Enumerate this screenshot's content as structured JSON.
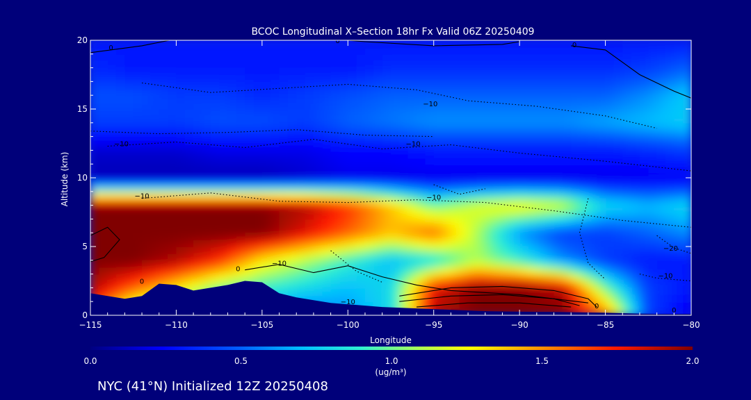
{
  "chart_data": {
    "type": "heatmap",
    "title": "BCOC Longitudinal X–Section 18hr  Fx Valid 06Z 20250409",
    "xlabel": "Longitude",
    "ylabel": "Altitude (km)",
    "xlim": [
      -115,
      -80
    ],
    "ylim": [
      0,
      20
    ],
    "x_ticks": [
      -115,
      -110,
      -105,
      -100,
      -95,
      -90,
      -85,
      -80
    ],
    "x_tick_labels": [
      "−115",
      "−110",
      "−105",
      "−100",
      "−95",
      "−90",
      "−85",
      "−80"
    ],
    "y_ticks": [
      0,
      5,
      10,
      15,
      20
    ],
    "y_tick_labels": [
      "0",
      "5",
      "10",
      "15",
      "20"
    ],
    "colorbar": {
      "min": 0.0,
      "max": 2.0,
      "ticks": [
        0.0,
        0.5,
        1.0,
        1.5,
        2.0
      ],
      "tick_labels": [
        "0.0",
        "0.5",
        "1.0",
        "1.5",
        "2.0"
      ],
      "label_main": "1.0",
      "units": "(ug/m³)"
    },
    "grid": {
      "x": [
        -115,
        -112.5,
        -110,
        -107.5,
        -105,
        -102.5,
        -100,
        -97.5,
        -95,
        -92.5,
        -90,
        -87.5,
        -85,
        -82.5,
        -80
      ],
      "y": [
        0,
        2,
        4,
        6,
        8,
        10,
        12,
        14,
        16,
        18,
        20
      ],
      "z": [
        [
          1.6,
          0.9,
          0.8,
          0.7,
          0.6,
          0.5,
          0.6,
          0.8,
          1.9,
          2.0,
          2.0,
          2.0,
          1.6,
          0.4,
          0.2
        ],
        [
          1.9,
          1.6,
          1.3,
          1.0,
          0.9,
          0.8,
          0.7,
          0.8,
          1.8,
          2.0,
          2.0,
          1.9,
          1.0,
          0.4,
          0.3
        ],
        [
          2.0,
          2.0,
          1.9,
          1.7,
          1.3,
          1.1,
          0.9,
          0.7,
          0.8,
          1.1,
          0.9,
          0.6,
          0.4,
          0.3,
          0.3
        ],
        [
          2.0,
          2.0,
          2.0,
          2.0,
          2.0,
          1.8,
          1.6,
          1.4,
          1.6,
          1.1,
          0.6,
          0.4,
          0.4,
          0.5,
          0.6
        ],
        [
          2.0,
          2.0,
          2.0,
          2.0,
          2.0,
          1.9,
          1.7,
          1.4,
          1.0,
          1.2,
          1.3,
          1.2,
          0.8,
          0.7,
          0.8
        ],
        [
          0.1,
          0.1,
          0.1,
          0.1,
          0.1,
          0.15,
          0.2,
          0.2,
          0.2,
          0.2,
          0.2,
          0.2,
          0.2,
          0.2,
          0.2
        ],
        [
          0.15,
          0.15,
          0.15,
          0.2,
          0.2,
          0.2,
          0.25,
          0.25,
          0.3,
          0.3,
          0.3,
          0.3,
          0.3,
          0.35,
          0.4
        ],
        [
          0.4,
          0.4,
          0.4,
          0.45,
          0.45,
          0.4,
          0.5,
          0.55,
          0.6,
          0.6,
          0.6,
          0.6,
          0.65,
          0.7,
          0.75
        ],
        [
          0.45,
          0.45,
          0.4,
          0.4,
          0.35,
          0.4,
          0.45,
          0.5,
          0.5,
          0.5,
          0.5,
          0.5,
          0.5,
          0.6,
          0.75
        ],
        [
          0.35,
          0.3,
          0.3,
          0.3,
          0.3,
          0.3,
          0.3,
          0.35,
          0.35,
          0.35,
          0.35,
          0.35,
          0.35,
          0.4,
          0.5
        ],
        [
          0.3,
          0.3,
          0.3,
          0.3,
          0.3,
          0.3,
          0.3,
          0.3,
          0.3,
          0.3,
          0.3,
          0.3,
          0.3,
          0.3,
          0.3
        ]
      ]
    },
    "terrain": {
      "x": [
        -115,
        -114,
        -113,
        -112,
        -111,
        -110,
        -109,
        -108,
        -107,
        -106,
        -105,
        -104,
        -103,
        -102,
        -101,
        -100,
        -99,
        -98,
        -97,
        -96,
        -95,
        -94,
        -93,
        -92,
        -91,
        -90,
        -89,
        -88,
        -87,
        -86,
        -85,
        -84,
        -83,
        -82,
        -81,
        -80
      ],
      "y": [
        1.6,
        1.4,
        1.2,
        1.4,
        2.3,
        2.2,
        1.8,
        2.0,
        2.2,
        2.5,
        2.4,
        1.6,
        1.3,
        1.1,
        0.9,
        0.8,
        0.7,
        0.6,
        0.55,
        0.5,
        0.45,
        0.4,
        0.35,
        0.3,
        0.28,
        0.26,
        0.25,
        0.24,
        0.22,
        0.2,
        0.18,
        0.15,
        0.12,
        0.1,
        0.1,
        0.1
      ]
    },
    "contour_labels": [
      {
        "text": "0",
        "x": -113.8,
        "y": 19.3
      },
      {
        "text": "0",
        "x": -100.6,
        "y": 19.8
      },
      {
        "text": "0",
        "x": -86.8,
        "y": 19.5
      },
      {
        "text": "−10",
        "x": -95.2,
        "y": 15.2
      },
      {
        "text": "−10",
        "x": -113.2,
        "y": 12.3
      },
      {
        "text": "−10",
        "x": -96.2,
        "y": 12.3
      },
      {
        "text": "−10",
        "x": -112.0,
        "y": 8.5
      },
      {
        "text": "−10",
        "x": -95.0,
        "y": 8.4
      },
      {
        "text": "−20",
        "x": -81.2,
        "y": 4.7
      },
      {
        "text": "−10",
        "x": -104.0,
        "y": 3.6
      },
      {
        "text": "0",
        "x": -106.4,
        "y": 3.2
      },
      {
        "text": "0",
        "x": -112.0,
        "y": 2.3
      },
      {
        "text": "−10",
        "x": -81.5,
        "y": 2.7
      },
      {
        "text": "−10",
        "x": -100.0,
        "y": 0.8
      },
      {
        "text": "0",
        "x": -85.5,
        "y": 0.5
      },
      {
        "text": "0",
        "x": -81.0,
        "y": 0.2
      }
    ]
  },
  "caption": "NYC (41°N) Initialized 12Z 20250408"
}
